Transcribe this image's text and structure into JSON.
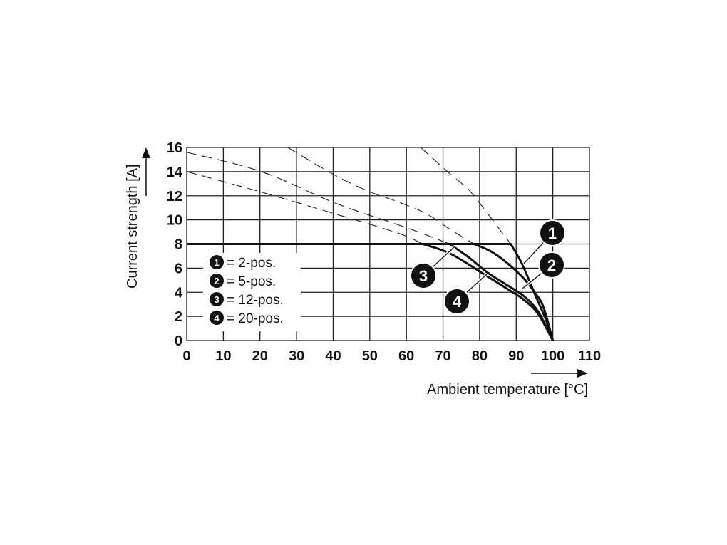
{
  "chart_data": {
    "type": "line",
    "title": "",
    "xlabel": "Ambient temperature [°C]",
    "ylabel": "Current strength [A]",
    "xlim": [
      0,
      110
    ],
    "ylim": [
      0,
      16
    ],
    "xticks": [
      "0",
      "10",
      "20",
      "30",
      "40",
      "50",
      "60",
      "70",
      "80",
      "90",
      "100",
      "110"
    ],
    "yticks": [
      "0",
      "2",
      "4",
      "6",
      "8",
      "10",
      "12",
      "14",
      "16"
    ],
    "grid": true,
    "current_limit": 8,
    "legend_placement": "lower-left",
    "series": [
      {
        "id": "1",
        "name": "2-pos.",
        "legend": "= 2-pos.",
        "dashed": [
          [
            63.9,
            16
          ],
          [
            71.6,
            13.9
          ],
          [
            77,
            12.5
          ],
          [
            81,
            11
          ],
          [
            86,
            9
          ],
          [
            88.5,
            8
          ]
        ],
        "solid": [
          [
            0,
            8
          ],
          [
            88.5,
            8
          ],
          [
            91.5,
            6.4
          ],
          [
            95.3,
            3.7
          ],
          [
            98,
            1.8
          ],
          [
            100,
            0
          ]
        ]
      },
      {
        "id": "2",
        "name": "5-pos.",
        "legend": "= 5-pos.",
        "dashed": [
          [
            27.6,
            16
          ],
          [
            40.5,
            13.7
          ],
          [
            50.2,
            12.3
          ],
          [
            57.7,
            11.5
          ],
          [
            65.5,
            10.5
          ],
          [
            72,
            9.2
          ],
          [
            78.5,
            8
          ]
        ],
        "solid": [
          [
            0,
            8
          ],
          [
            78.5,
            8
          ],
          [
            83,
            7.4
          ],
          [
            86.8,
            6.6
          ],
          [
            91.9,
            5.2
          ],
          [
            95,
            4
          ],
          [
            97.4,
            2.8
          ],
          [
            100,
            0
          ]
        ]
      },
      {
        "id": "3",
        "name": "12-pos.",
        "legend": "= 12-pos.",
        "dashed": [
          [
            0,
            15.6
          ],
          [
            20.4,
            14
          ],
          [
            40.5,
            11.4
          ],
          [
            57.7,
            9.6
          ],
          [
            65,
            8.8
          ],
          [
            71.8,
            8
          ]
        ],
        "solid": [
          [
            0,
            8
          ],
          [
            71.8,
            8
          ],
          [
            77,
            6.9
          ],
          [
            82.3,
            5.6
          ],
          [
            88,
            4.5
          ],
          [
            92,
            3.7
          ],
          [
            96,
            2.4
          ],
          [
            100,
            0
          ]
        ]
      },
      {
        "id": "4",
        "name": "20-pos.",
        "legend": "= 20-pos.",
        "dashed": [
          [
            0,
            14
          ],
          [
            20.4,
            12.3
          ],
          [
            40.5,
            10.5
          ],
          [
            57.7,
            8.9
          ],
          [
            64.5,
            8
          ]
        ],
        "solid": [
          [
            0,
            8
          ],
          [
            64.5,
            8
          ],
          [
            72,
            7.2
          ],
          [
            81.7,
            5.4
          ],
          [
            88,
            4.2
          ],
          [
            92,
            3.4
          ],
          [
            96,
            2.2
          ],
          [
            100,
            0
          ]
        ]
      }
    ]
  }
}
